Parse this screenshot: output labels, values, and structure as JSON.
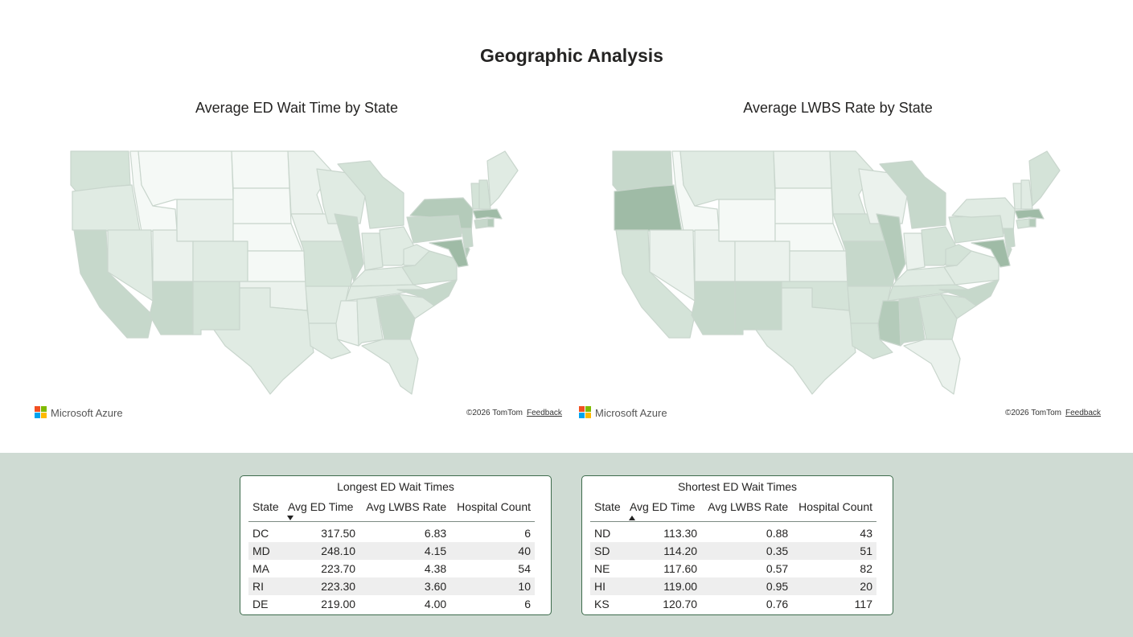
{
  "page": {
    "title": "Geographic Analysis"
  },
  "maps": [
    {
      "title": "Average ED Wait Time by State",
      "attribution_brand": "Microsoft Azure",
      "copyright": "©2026 TomTom",
      "feedback": "Feedback"
    },
    {
      "title": "Average LWBS Rate by State",
      "attribution_brand": "Microsoft Azure",
      "copyright": "©2026 TomTom",
      "feedback": "Feedback"
    }
  ],
  "colors": {
    "map_shades": [
      "#f5f9f6",
      "#ebf2ed",
      "#e0ebe3",
      "#d4e3d8",
      "#c6d8cb",
      "#b4cbba",
      "#9fbba6"
    ],
    "map_border": "#c9d6cd",
    "band": "#cfdbd3",
    "card_border": "#3d6b4c",
    "ms_logo": [
      "#f25022",
      "#7fba00",
      "#00a4ef",
      "#ffb900"
    ]
  },
  "tables": [
    {
      "title": "Longest ED Wait Times",
      "headers": [
        "State",
        "Avg ED Time",
        "Avg LWBS Rate",
        "Hospital Count"
      ],
      "sort": "descending",
      "rows": [
        [
          "DC",
          "317.50",
          "6.83",
          "6"
        ],
        [
          "MD",
          "248.10",
          "4.15",
          "40"
        ],
        [
          "MA",
          "223.70",
          "4.38",
          "54"
        ],
        [
          "RI",
          "223.30",
          "3.60",
          "10"
        ],
        [
          "DE",
          "219.00",
          "4.00",
          "6"
        ]
      ]
    },
    {
      "title": "Shortest ED Wait Times",
      "headers": [
        "State",
        "Avg ED Time",
        "Avg LWBS Rate",
        "Hospital Count"
      ],
      "sort": "ascending",
      "rows": [
        [
          "ND",
          "113.30",
          "0.88",
          "43"
        ],
        [
          "SD",
          "114.20",
          "0.35",
          "51"
        ],
        [
          "NE",
          "117.60",
          "0.57",
          "82"
        ],
        [
          "HI",
          "119.00",
          "0.95",
          "20"
        ],
        [
          "KS",
          "120.70",
          "0.76",
          "117"
        ]
      ]
    }
  ]
}
